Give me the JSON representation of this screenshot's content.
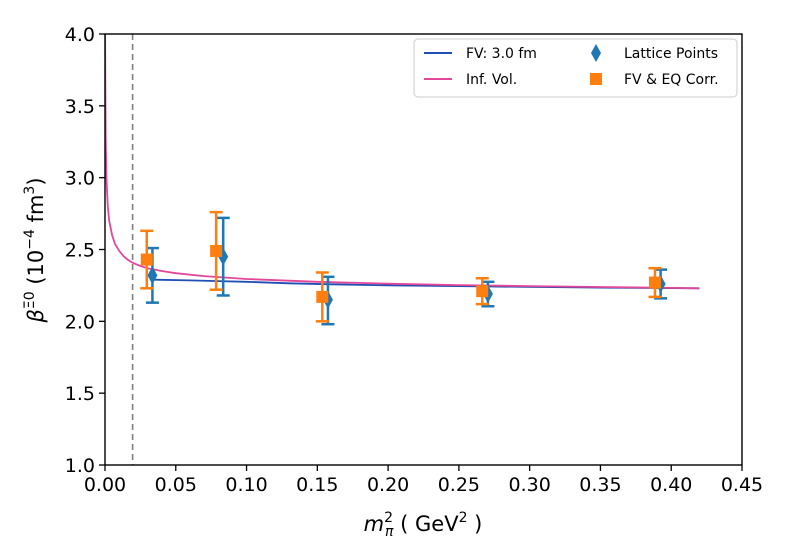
{
  "chart_data": {
    "type": "scatter",
    "title": "",
    "xlabel": {
      "base": "m",
      "sub": "π",
      "sup": "2",
      "unit_open": " ( GeV",
      "unit_sup": "2",
      "unit_close": " )"
    },
    "ylabel": {
      "base": "β",
      "sup": "Ξ0",
      "unit_open": " (10",
      "unit_sup": "−4",
      "unit_mid": " fm",
      "unit_sup2": "3",
      "unit_close": ")"
    },
    "xlim": [
      0.0,
      0.45
    ],
    "ylim": [
      1.0,
      4.0
    ],
    "x_ticks": [
      "0.00",
      "0.05",
      "0.10",
      "0.15",
      "0.20",
      "0.25",
      "0.30",
      "0.35",
      "0.40",
      "0.45"
    ],
    "y_ticks": [
      "1.0",
      "1.5",
      "2.0",
      "2.5",
      "3.0",
      "3.5",
      "4.0"
    ],
    "vertical_reference_line": {
      "x": 0.0195,
      "style": "dashed",
      "color": "#808080"
    },
    "colors": {
      "fv_curve": "#1f4eb4",
      "inf_curve": "#e2479a",
      "lattice": "#1f77b4",
      "corrected": "#ff7f0e"
    },
    "series": [
      {
        "name": "FV: 3.0 fm",
        "kind": "line",
        "x": [
          0.035,
          0.06,
          0.08,
          0.1,
          0.13,
          0.16,
          0.2,
          0.25,
          0.3,
          0.35,
          0.39,
          0.42
        ],
        "y": [
          2.29,
          2.285,
          2.28,
          2.275,
          2.265,
          2.258,
          2.25,
          2.245,
          2.24,
          2.235,
          2.232,
          2.23
        ]
      },
      {
        "name": "Inf. Vol.",
        "kind": "line",
        "x": [
          0.0001,
          0.0002,
          0.0005,
          0.001,
          0.002,
          0.003,
          0.005,
          0.007,
          0.01,
          0.013,
          0.016,
          0.02,
          0.025,
          0.03,
          0.04,
          0.05,
          0.07,
          0.1,
          0.15,
          0.2,
          0.25,
          0.3,
          0.35,
          0.4,
          0.42
        ],
        "y": [
          4.0,
          3.68,
          3.27,
          3.0,
          2.8,
          2.7,
          2.6,
          2.54,
          2.49,
          2.455,
          2.43,
          2.405,
          2.385,
          2.37,
          2.35,
          2.335,
          2.315,
          2.295,
          2.275,
          2.262,
          2.252,
          2.245,
          2.239,
          2.233,
          2.23
        ]
      },
      {
        "name": "Lattice Points",
        "kind": "points",
        "marker": "thin_diamond",
        "x": [
          0.0335,
          0.0835,
          0.1575,
          0.2705,
          0.3925
        ],
        "y": [
          2.32,
          2.45,
          2.15,
          2.19,
          2.26
        ],
        "err_low": [
          0.19,
          0.27,
          0.17,
          0.085,
          0.1
        ],
        "err_high": [
          0.19,
          0.27,
          0.16,
          0.085,
          0.1
        ]
      },
      {
        "name": "FV & EQ Corr.",
        "kind": "points",
        "marker": "square",
        "x": [
          0.0295,
          0.0785,
          0.1535,
          0.2665,
          0.3885
        ],
        "y": [
          2.43,
          2.49,
          2.17,
          2.21,
          2.27
        ],
        "err_low": [
          0.2,
          0.27,
          0.17,
          0.09,
          0.1
        ],
        "err_high": [
          0.2,
          0.27,
          0.17,
          0.09,
          0.1
        ]
      }
    ],
    "legend": {
      "position": "top-right",
      "columns": 2,
      "entries": [
        "FV: 3.0 fm",
        "Inf. Vol.",
        "Lattice Points",
        "FV & EQ Corr."
      ]
    }
  }
}
